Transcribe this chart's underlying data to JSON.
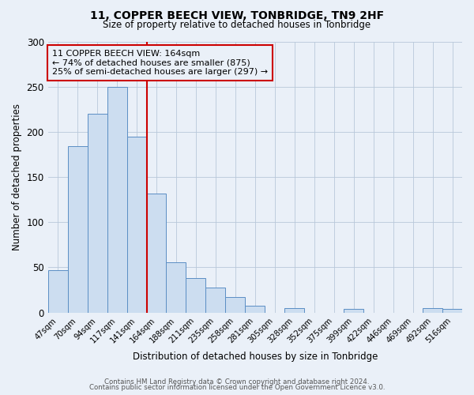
{
  "title": "11, COPPER BEECH VIEW, TONBRIDGE, TN9 2HF",
  "subtitle": "Size of property relative to detached houses in Tonbridge",
  "xlabel": "Distribution of detached houses by size in Tonbridge",
  "ylabel": "Number of detached properties",
  "bar_labels": [
    "47sqm",
    "70sqm",
    "94sqm",
    "117sqm",
    "141sqm",
    "164sqm",
    "188sqm",
    "211sqm",
    "235sqm",
    "258sqm",
    "281sqm",
    "305sqm",
    "328sqm",
    "352sqm",
    "375sqm",
    "399sqm",
    "422sqm",
    "446sqm",
    "469sqm",
    "492sqm",
    "516sqm"
  ],
  "bar_values": [
    47,
    184,
    220,
    250,
    195,
    132,
    56,
    38,
    28,
    17,
    8,
    0,
    5,
    0,
    0,
    4,
    0,
    0,
    0,
    5,
    4
  ],
  "bar_color": "#ccddf0",
  "bar_edge_color": "#5b8ec4",
  "background_color": "#eaf0f8",
  "vline_color": "#cc0000",
  "annotation_title": "11 COPPER BEECH VIEW: 164sqm",
  "annotation_line1": "← 74% of detached houses are smaller (875)",
  "annotation_line2": "25% of semi-detached houses are larger (297) →",
  "annotation_box_edgecolor": "#cc0000",
  "ylim": [
    0,
    300
  ],
  "yticks": [
    0,
    50,
    100,
    150,
    200,
    250,
    300
  ],
  "footer1": "Contains HM Land Registry data © Crown copyright and database right 2024.",
  "footer2": "Contains public sector information licensed under the Open Government Licence v3.0."
}
